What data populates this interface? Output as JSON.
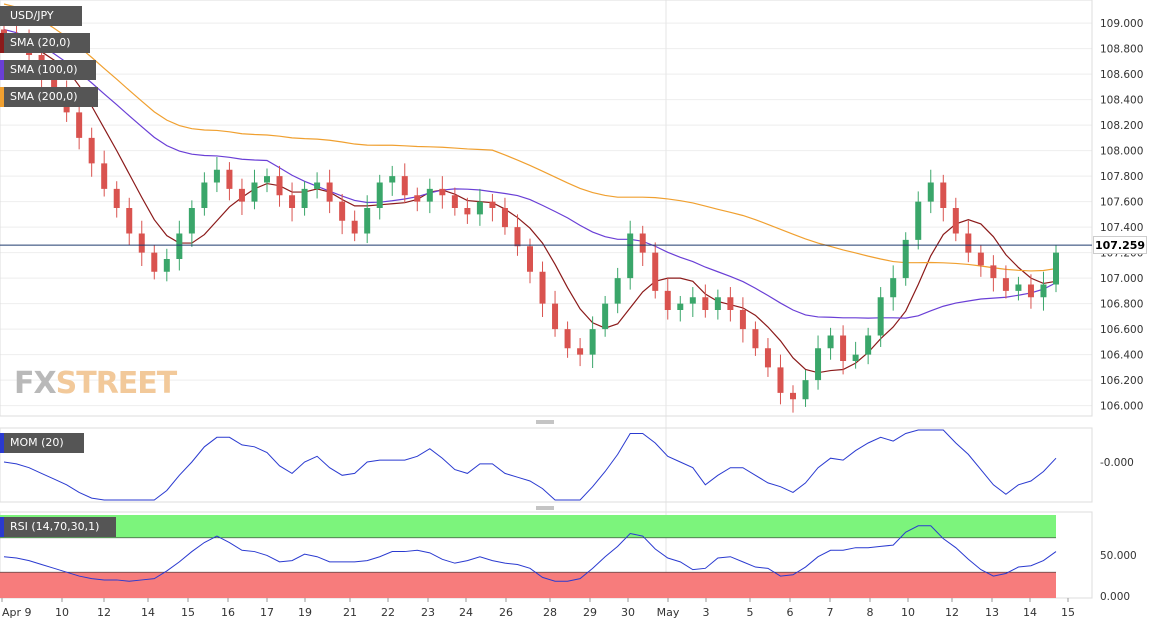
{
  "chart_data": [
    {
      "type": "candlestick",
      "title": "USD/JPY",
      "ylim": [
        105.95,
        109.15
      ],
      "yticks": [
        "109.000",
        "108.800",
        "108.600",
        "108.400",
        "108.200",
        "108.000",
        "107.800",
        "107.600",
        "107.400",
        "107.200",
        "107.000",
        "106.800",
        "106.600",
        "106.400",
        "106.200",
        "106.000"
      ],
      "current_price": "107.259",
      "xticks": [
        "Apr 9",
        "10",
        "12",
        "14",
        "15",
        "16",
        "17",
        "19",
        "21",
        "22",
        "23",
        "24",
        "26",
        "28",
        "29",
        "30",
        "May",
        "3",
        "5",
        "6",
        "7",
        "8",
        "10",
        "12",
        "13",
        "14",
        "15"
      ],
      "series": [
        {
          "name": "SMA (20,0)",
          "color": "#8b1a1a"
        },
        {
          "name": "SMA (100,0)",
          "color": "#6a3fd6"
        },
        {
          "name": "SMA (200,0)",
          "color": "#f0a030"
        }
      ],
      "candles": [
        108.9,
        108.85,
        108.75,
        108.6,
        108.45,
        108.3,
        108.1,
        107.9,
        107.7,
        107.55,
        107.35,
        107.2,
        107.05,
        107.15,
        107.35,
        107.55,
        107.75,
        107.85,
        107.7,
        107.6,
        107.75,
        107.8,
        107.65,
        107.55,
        107.7,
        107.75,
        107.6,
        107.45,
        107.35,
        107.55,
        107.75,
        107.8,
        107.65,
        107.6,
        107.7,
        107.65,
        107.55,
        107.5,
        107.6,
        107.55,
        107.4,
        107.25,
        107.05,
        106.8,
        106.6,
        106.45,
        106.4,
        106.6,
        106.8,
        107.0,
        107.35,
        107.2,
        106.9,
        106.75,
        106.8,
        106.85,
        106.75,
        106.85,
        106.75,
        106.6,
        106.45,
        106.3,
        106.1,
        106.05,
        106.2,
        106.45,
        106.55,
        106.35,
        106.4,
        106.55,
        106.85,
        107.0,
        107.3,
        107.6,
        107.75,
        107.55,
        107.35,
        107.2,
        107.1,
        107.0,
        106.9,
        106.95,
        106.85,
        106.95,
        107.2
      ]
    },
    {
      "type": "line",
      "title": "MOM (20)",
      "yticks": [
        "-0.000"
      ],
      "series": [
        {
          "name": "MOM (20)",
          "color": "#2a3ad0"
        }
      ]
    },
    {
      "type": "line",
      "title": "RSI (14,70,30,1)",
      "yticks": [
        "50.000",
        "0.000"
      ],
      "series": [
        {
          "name": "RSI (14,70,30,1)",
          "color": "#2a3ad0"
        }
      ],
      "levels": [
        70,
        30
      ]
    }
  ],
  "watermark": {
    "part1": "FX",
    "part2": "STREET"
  }
}
